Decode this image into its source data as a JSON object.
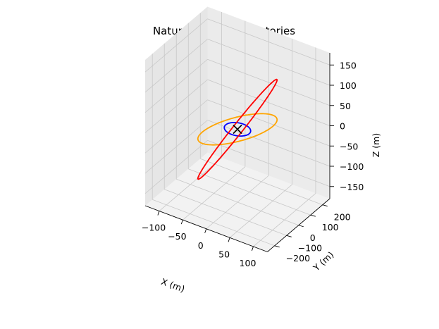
{
  "chart_data": {
    "type": "line",
    "projection": "3d",
    "title": "Natural Motion Trajectories",
    "xlabel": "X (m)",
    "ylabel": "Y (m)",
    "zlabel": "Z (m)",
    "xlim": [
      -130,
      130
    ],
    "ylim": [
      -260,
      260
    ],
    "zlim": [
      -180,
      180
    ],
    "xticks": [
      -100,
      -50,
      0,
      50,
      100
    ],
    "xtick_labels": [
      "−100",
      "−50",
      "0",
      "50",
      "100"
    ],
    "yticks": [
      -200,
      -100,
      0,
      100,
      200
    ],
    "ytick_labels": [
      "−200",
      "−100",
      "0",
      "100",
      "200"
    ],
    "zticks": [
      -150,
      -100,
      -50,
      0,
      50,
      100,
      150
    ],
    "ztick_labels": [
      "−150",
      "−100",
      "−50",
      "0",
      "50",
      "100",
      "150"
    ],
    "grid": true,
    "series": [
      {
        "color": "#0000ff",
        "x_amplitude": 25,
        "y_amplitude": 50,
        "z_amplitude": 0
      },
      {
        "color": "#ffa500",
        "x_amplitude": 75,
        "y_amplitude": 150,
        "z_amplitude": 40
      },
      {
        "color": "#ff0000",
        "x_amplitude": 75,
        "y_amplitude": 150,
        "z_amplitude": 150
      }
    ],
    "marker": {
      "symbol": "x",
      "color": "#000000",
      "x": 0,
      "y": 0,
      "z": 0
    }
  }
}
